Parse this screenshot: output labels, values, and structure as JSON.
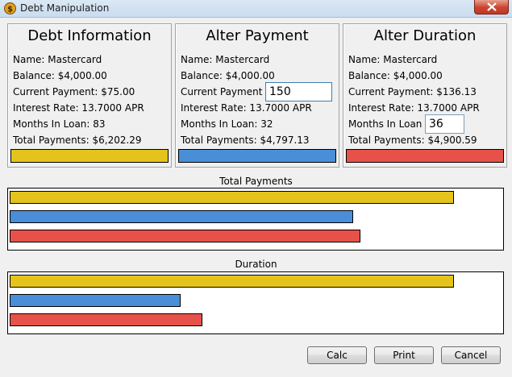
{
  "window": {
    "title": "Debt Manipulation",
    "icon": "app-icon"
  },
  "colors": {
    "yellow": "#e4c41c",
    "blue": "#4a8ed8",
    "red": "#e6524a"
  },
  "panels": {
    "debt": {
      "title": "Debt Information",
      "name": "Name: Mastercard",
      "balance": "Balance: $4,000.00",
      "payment": "Current Payment: $75.00",
      "rate": "Interest Rate: 13.7000 APR",
      "months": "Months In Loan: 83",
      "total": "Total Payments: $6,202.29"
    },
    "payment": {
      "title": "Alter Payment",
      "name": "Name: Mastercard",
      "balance": "Balance: $4,000.00",
      "payment_label": "Current Payment",
      "payment_value": "150",
      "rate": "Interest Rate: 13.7000 APR",
      "months": "Months In Loan: 32",
      "total": "Total Payments: $4,797.13"
    },
    "duration": {
      "title": "Alter Duration",
      "name": "Name: Mastercard",
      "balance": "Balance: $4,000.00",
      "payment": "Current Payment: $136.13",
      "rate": "Interest Rate: 13.7000 APR",
      "months_label": "Months In Loan",
      "months_value": "36",
      "total": "Total Payments: $4,900.59"
    }
  },
  "charts": {
    "total_payments": {
      "label": "Total Payments",
      "max": 6202.29,
      "values": [
        6202.29,
        4797.13,
        4900.59
      ]
    },
    "duration": {
      "label": "Duration",
      "max": 83,
      "values": [
        83,
        32,
        36
      ]
    }
  },
  "buttons": {
    "calc": "Calc",
    "print": "Print",
    "cancel": "Cancel"
  }
}
